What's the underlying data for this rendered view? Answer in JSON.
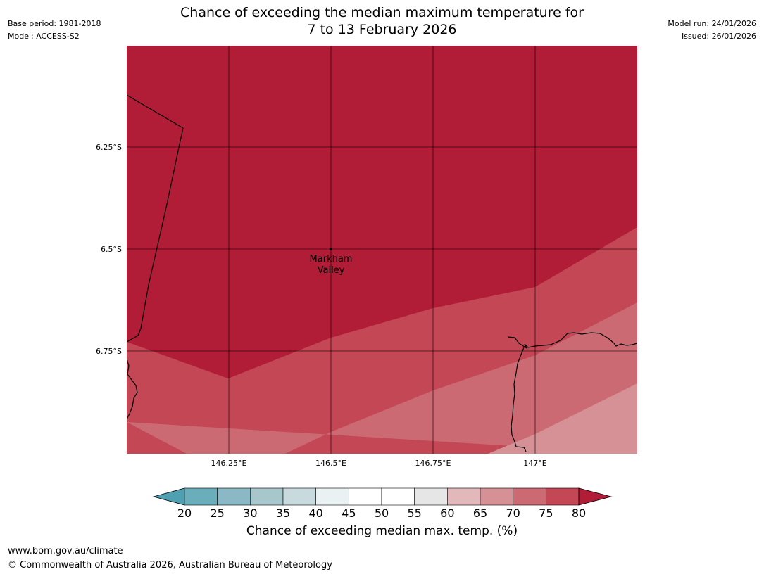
{
  "header": {
    "base_period": "Base period: 1981-2018",
    "model": "Model: ACCESS-S2",
    "model_run": "Model run: 24/01/2026",
    "issued": "Issued: 26/01/2026",
    "title_line1": "Chance of exceeding the median maximum temperature for",
    "title_line2": "7 to 13 February 2026"
  },
  "map": {
    "latitude_labels": [
      "6.25°S",
      "6.5°S",
      "6.75°S"
    ],
    "longitude_labels": [
      "146.25°E",
      "146.5°E",
      "146.75°E",
      "147°E"
    ],
    "place": {
      "name_line1": "Markham",
      "name_line2": "Valley"
    },
    "bands": [
      {
        "range": "above 80%",
        "color": "#b11c37"
      },
      {
        "range": "75-80%",
        "color": "#c34755"
      },
      {
        "range": "70-75%",
        "color": "#cc6a73"
      },
      {
        "range": "65-70%",
        "color": "#d69197"
      }
    ],
    "coastline_color": "#000000",
    "grid_color": "#000000"
  },
  "colorbar": {
    "ticks": [
      "20",
      "25",
      "30",
      "35",
      "40",
      "45",
      "50",
      "55",
      "60",
      "65",
      "70",
      "75",
      "80"
    ],
    "colors": {
      "below": "#4fa1b1",
      "20-25": "#6aaebb",
      "25-30": "#8ab9c5",
      "30-35": "#a8c7cd",
      "35-40": "#c9dadf",
      "40-45": "#e9f1f3",
      "45-50": "#ffffff",
      "50-55": "#ffffff",
      "55-60": "#e6e6e6",
      "60-65": "#e3b8bb",
      "65-70": "#d69197",
      "70-75": "#cc6a73",
      "75-80": "#c34755",
      "above": "#b11c37"
    },
    "title": "Chance of exceeding median max. temp. (%)"
  },
  "footer": {
    "url": "www.bom.gov.au/climate",
    "copyright": "© Commonwealth of Australia 2026, Australian Bureau of Meteorology"
  }
}
